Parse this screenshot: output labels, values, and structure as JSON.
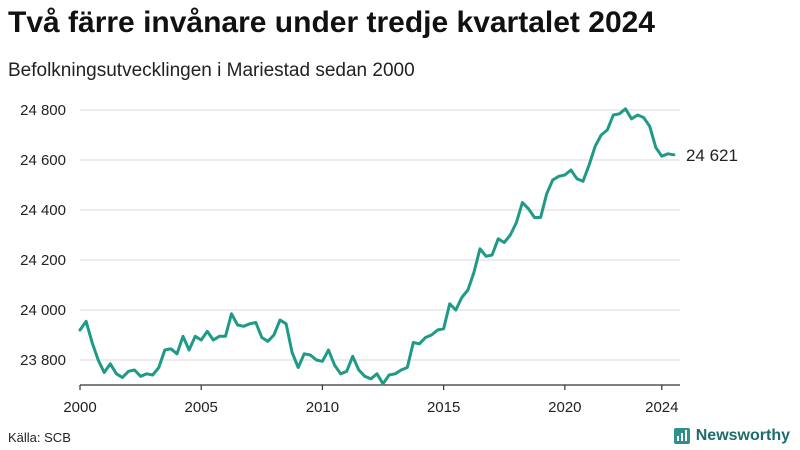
{
  "header": {
    "title": "Två färre invånare under tredje kvartalet 2024",
    "subtitle": "Befolkningsutvecklingen i Mariestad sedan 2000"
  },
  "footer": {
    "source": "Källa: SCB",
    "brand": "Newsworthy",
    "brand_icon": "bar-chart-icon"
  },
  "colors": {
    "line": "#1f9a87",
    "grid": "#d8d8d8"
  },
  "chart_data": {
    "type": "line",
    "title": "Två färre invånare under tredje kvartalet 2024",
    "subtitle": "Befolkningsutvecklingen i Mariestad sedan 2000",
    "xlabel": "",
    "ylabel": "",
    "xlim": [
      2000,
      2024.75
    ],
    "ylim": [
      23700,
      24840
    ],
    "x_ticks": [
      2000,
      2005,
      2010,
      2015,
      2020,
      2024
    ],
    "x_tick_labels": [
      "2000",
      "2005",
      "2010",
      "2015",
      "2020",
      "2024"
    ],
    "y_ticks": [
      23800,
      24000,
      24200,
      24400,
      24600,
      24800
    ],
    "y_tick_labels": [
      "23 800",
      "24 000",
      "24 200",
      "24 400",
      "24 600",
      "24 800"
    ],
    "grid": "horizontal",
    "end_label": "24 621",
    "series": [
      {
        "values": [
          23920,
          23955,
          23870,
          23800,
          23750,
          23785,
          23745,
          23730,
          23755,
          23760,
          23735,
          23745,
          23740,
          23770,
          23840,
          23845,
          23825,
          23895,
          23840,
          23895,
          23880,
          23915,
          23880,
          23895,
          23895,
          23985,
          23940,
          23935,
          23945,
          23950,
          23890,
          23875,
          23900,
          23960,
          23945,
          23830,
          23770,
          23825,
          23820,
          23800,
          23795,
          23840,
          23780,
          23745,
          23755,
          23815,
          23760,
          23735,
          23725,
          23745,
          23705,
          23740,
          23745,
          23760,
          23770,
          23870,
          23865,
          23890,
          23900,
          23920,
          23925,
          24025,
          24000,
          24050,
          24080,
          24150,
          24245,
          24215,
          24220,
          24285,
          24270,
          24300,
          24350,
          24430,
          24405,
          24370,
          24370,
          24465,
          24520,
          24535,
          24540,
          24560,
          24525,
          24515,
          24580,
          24655,
          24700,
          24720,
          24780,
          24785,
          24805,
          24765,
          24780,
          24770,
          24735,
          24650,
          24615,
          24625,
          24621
        ],
        "x_start": 2000,
        "x_step": 0.25
      }
    ]
  }
}
